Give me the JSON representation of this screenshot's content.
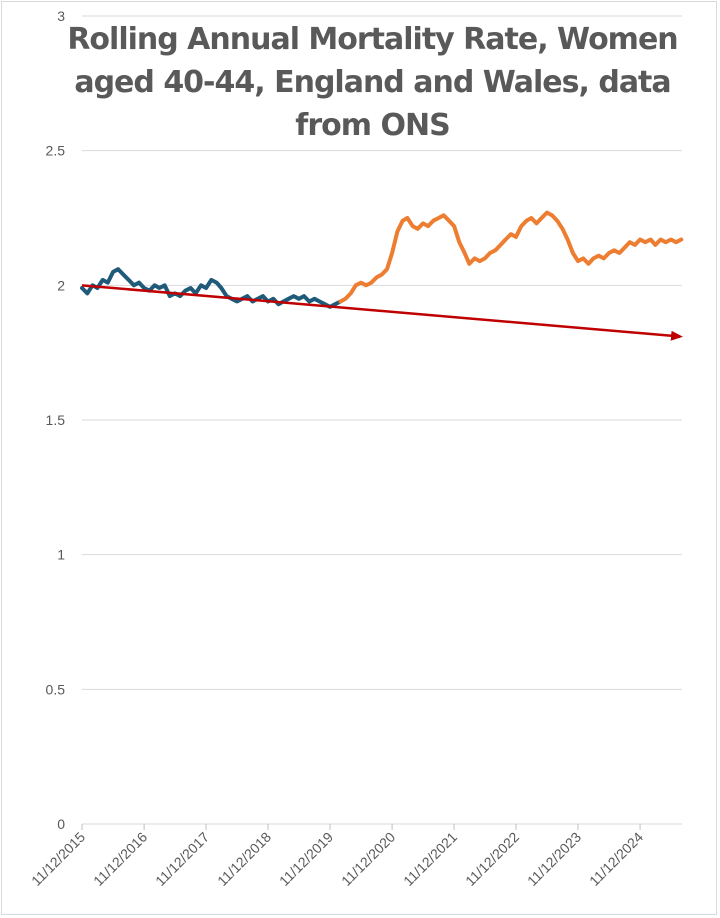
{
  "chart_data": {
    "type": "line",
    "title": "Rolling Annual Mortality Rate, Women aged 40-44, England and Wales, data from ONS",
    "xlabel": "",
    "ylabel": "",
    "ylim": [
      0,
      3
    ],
    "yticks": [
      0,
      0.5,
      1,
      1.5,
      2,
      2.5,
      3
    ],
    "grid": true,
    "legend": "none",
    "x_range": [
      "2015-12-11",
      "2025-08-15"
    ],
    "x_tick_labels": [
      "11/12/2015",
      "11/12/2016",
      "11/12/2017",
      "11/12/2018",
      "11/12/2019",
      "11/12/2020",
      "11/12/2021",
      "11/12/2022",
      "11/12/2023",
      "11/12/2024"
    ],
    "x_tick_dates": [
      "2015-12-11",
      "2016-12-11",
      "2017-12-11",
      "2018-12-11",
      "2019-12-11",
      "2020-12-11",
      "2021-12-11",
      "2022-12-11",
      "2023-12-11",
      "2024-12-11"
    ],
    "colors": {
      "pre": "#1f5a7a",
      "post": "#ed7d31",
      "trend": "#c00000",
      "grid": "#d9d9d9"
    },
    "series": [
      {
        "role": "pre",
        "x": [
          "2015-12-11",
          "2016-01-11",
          "2016-02-11",
          "2016-03-11",
          "2016-04-11",
          "2016-05-11",
          "2016-06-11",
          "2016-07-11",
          "2016-08-11",
          "2016-09-11",
          "2016-10-11",
          "2016-11-11",
          "2016-12-11",
          "2017-01-11",
          "2017-02-11",
          "2017-03-11",
          "2017-04-11",
          "2017-05-11",
          "2017-06-11",
          "2017-07-11",
          "2017-08-11",
          "2017-09-11",
          "2017-10-11",
          "2017-11-11",
          "2017-12-11",
          "2018-01-11",
          "2018-02-11",
          "2018-03-11",
          "2018-04-11",
          "2018-05-11",
          "2018-06-11",
          "2018-07-11",
          "2018-08-11",
          "2018-09-11",
          "2018-10-11",
          "2018-11-11",
          "2018-12-11",
          "2019-01-11",
          "2019-02-11",
          "2019-03-11",
          "2019-04-11",
          "2019-05-11",
          "2019-06-11",
          "2019-07-11",
          "2019-08-11",
          "2019-09-11",
          "2019-10-11",
          "2019-11-11",
          "2019-12-11",
          "2020-01-11",
          "2020-02-11"
        ],
        "values": [
          1.99,
          1.97,
          2.0,
          1.99,
          2.02,
          2.01,
          2.05,
          2.06,
          2.04,
          2.02,
          2.0,
          2.01,
          1.99,
          1.98,
          2.0,
          1.99,
          2.0,
          1.96,
          1.97,
          1.96,
          1.98,
          1.99,
          1.97,
          2.0,
          1.99,
          2.02,
          2.01,
          1.99,
          1.96,
          1.95,
          1.94,
          1.95,
          1.96,
          1.94,
          1.95,
          1.96,
          1.94,
          1.95,
          1.93,
          1.94,
          1.95,
          1.96,
          1.95,
          1.96,
          1.94,
          1.95,
          1.94,
          1.93,
          1.92,
          1.93,
          1.94
        ]
      },
      {
        "role": "post",
        "x": [
          "2020-02-11",
          "2020-03-11",
          "2020-04-11",
          "2020-05-11",
          "2020-06-11",
          "2020-07-11",
          "2020-08-11",
          "2020-09-11",
          "2020-10-11",
          "2020-11-11",
          "2020-12-11",
          "2021-01-11",
          "2021-02-11",
          "2021-03-11",
          "2021-04-11",
          "2021-05-11",
          "2021-06-11",
          "2021-07-11",
          "2021-08-11",
          "2021-09-11",
          "2021-10-11",
          "2021-11-11",
          "2021-12-11",
          "2022-01-11",
          "2022-02-11",
          "2022-03-11",
          "2022-04-11",
          "2022-05-11",
          "2022-06-11",
          "2022-07-11",
          "2022-08-11",
          "2022-09-11",
          "2022-10-11",
          "2022-11-11",
          "2022-12-11",
          "2023-01-11",
          "2023-02-11",
          "2023-03-11",
          "2023-04-11",
          "2023-05-11",
          "2023-06-11",
          "2023-07-11",
          "2023-08-11",
          "2023-09-11",
          "2023-10-11",
          "2023-11-11",
          "2023-12-11",
          "2024-01-11",
          "2024-02-11",
          "2024-03-11",
          "2024-04-11",
          "2024-05-11",
          "2024-06-11",
          "2024-07-11",
          "2024-08-11",
          "2024-09-11",
          "2024-10-11",
          "2024-11-11",
          "2024-12-11",
          "2025-01-11",
          "2025-02-11",
          "2025-03-11",
          "2025-04-11",
          "2025-05-11",
          "2025-06-11",
          "2025-07-11",
          "2025-08-11"
        ],
        "values": [
          1.94,
          1.95,
          1.97,
          2.0,
          2.01,
          2.0,
          2.01,
          2.03,
          2.04,
          2.06,
          2.12,
          2.2,
          2.24,
          2.25,
          2.22,
          2.21,
          2.23,
          2.22,
          2.24,
          2.25,
          2.26,
          2.24,
          2.22,
          2.16,
          2.12,
          2.08,
          2.1,
          2.09,
          2.1,
          2.12,
          2.13,
          2.15,
          2.17,
          2.19,
          2.18,
          2.22,
          2.24,
          2.25,
          2.23,
          2.25,
          2.27,
          2.26,
          2.24,
          2.21,
          2.17,
          2.12,
          2.09,
          2.1,
          2.08,
          2.1,
          2.11,
          2.1,
          2.12,
          2.13,
          2.12,
          2.14,
          2.16,
          2.15,
          2.17,
          2.16,
          2.17,
          2.15,
          2.17,
          2.16,
          2.17,
          2.16,
          2.17
        ]
      }
    ],
    "trend": {
      "x": [
        "2015-12-11",
        "2025-08-15"
      ],
      "y": [
        2.0,
        1.81
      ]
    }
  }
}
